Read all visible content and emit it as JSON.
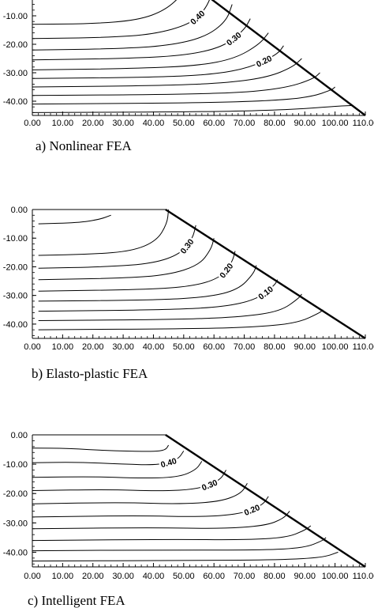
{
  "chart_data": [
    {
      "type": "line",
      "caption": "a) Nonlinear FEA",
      "xlim": [
        0,
        110
      ],
      "ylim": [
        -45,
        0
      ],
      "x_ticks": [
        "0.00",
        "10.00",
        "20.00",
        "30.00",
        "40.00",
        "50.00",
        "60.00",
        "70.00",
        "80.00",
        "90.00",
        "100.00",
        "110.00"
      ],
      "y_ticks": [
        "-10.00",
        "-20.00",
        "-30.00",
        "-40.00"
      ],
      "y_tick_values": [
        -10,
        -20,
        -30,
        -40
      ],
      "boundary": [
        [
          54,
          0
        ],
        [
          110,
          -45
        ]
      ],
      "series": [
        {
          "label": "",
          "points": [
            [
              0,
              -13
            ],
            [
              20,
              -12.8
            ],
            [
              35,
              -11.5
            ],
            [
              44,
              -8
            ],
            [
              50,
              -2
            ],
            [
              51,
              0
            ]
          ]
        },
        {
          "label": "0.40",
          "points": [
            [
              0,
              -18
            ],
            [
              25,
              -17.6
            ],
            [
              40,
              -16.5
            ],
            [
              52,
              -13
            ],
            [
              57,
              -8
            ],
            [
              59.5,
              -2
            ]
          ]
        },
        {
          "label": "",
          "points": [
            [
              0,
              -22
            ],
            [
              28,
              -21.6
            ],
            [
              45,
              -20.5
            ],
            [
              57,
              -17.5
            ],
            [
              64,
              -12
            ],
            [
              66,
              -6
            ]
          ]
        },
        {
          "label": "0.30",
          "points": [
            [
              0,
              -25.5
            ],
            [
              30,
              -25
            ],
            [
              50,
              -24
            ],
            [
              63,
              -21
            ],
            [
              70,
              -15
            ],
            [
              72,
              -11
            ]
          ]
        },
        {
          "label": "",
          "points": [
            [
              0,
              -29
            ],
            [
              35,
              -28.5
            ],
            [
              55,
              -27.5
            ],
            [
              67,
              -25
            ],
            [
              75,
              -20
            ],
            [
              78,
              -16
            ]
          ]
        },
        {
          "label": "0.20",
          "points": [
            [
              0,
              -32
            ],
            [
              40,
              -31.6
            ],
            [
              60,
              -30.6
            ],
            [
              72,
              -28.2
            ],
            [
              81,
              -23.5
            ],
            [
              83,
              -20.5
            ]
          ]
        },
        {
          "label": "",
          "points": [
            [
              0,
              -35
            ],
            [
              45,
              -34.5
            ],
            [
              65,
              -33.5
            ],
            [
              78,
              -31.5
            ],
            [
              86,
              -28
            ],
            [
              89,
              -25
            ]
          ]
        },
        {
          "label": "",
          "points": [
            [
              0,
              -38
            ],
            [
              50,
              -37.6
            ],
            [
              72,
              -36.8
            ],
            [
              85,
              -35
            ],
            [
              93,
              -32
            ],
            [
              95,
              -30
            ]
          ]
        },
        {
          "label": "",
          "points": [
            [
              0,
              -41
            ],
            [
              55,
              -40.6
            ],
            [
              80,
              -39.8
            ],
            [
              92,
              -38.5
            ],
            [
              99,
              -36
            ],
            [
              100,
              -35
            ]
          ]
        },
        {
          "label": "",
          "points": [
            [
              0,
              -44
            ],
            [
              60,
              -43.7
            ],
            [
              85,
              -43
            ],
            [
              100,
              -41.8
            ],
            [
              106,
              -41.5
            ]
          ]
        }
      ]
    },
    {
      "type": "line",
      "caption": "b) Elasto-plastic FEA",
      "xlim": [
        0,
        110
      ],
      "ylim": [
        -45,
        0
      ],
      "x_ticks": [
        "0.00",
        "10.00",
        "20.00",
        "30.00",
        "40.00",
        "50.00",
        "60.00",
        "70.00",
        "80.00",
        "90.00",
        "100.00",
        "110.00"
      ],
      "y_ticks": [
        "0.00",
        "-10.00",
        "-20.00",
        "-30.00",
        "-40.00"
      ],
      "y_tick_values": [
        0,
        -10,
        -20,
        -30,
        -40
      ],
      "boundary": [
        [
          44,
          0
        ],
        [
          110,
          -45
        ]
      ],
      "series": [
        {
          "label": "",
          "points": [
            [
              2,
              -5
            ],
            [
              15,
              -4.6
            ],
            [
              22,
              -3.5
            ],
            [
              26,
              -2
            ]
          ]
        },
        {
          "label": "",
          "points": [
            [
              2,
              -16
            ],
            [
              20,
              -15.6
            ],
            [
              33,
              -14.5
            ],
            [
              41,
              -11
            ],
            [
              44.5,
              -5
            ],
            [
              45,
              0
            ]
          ]
        },
        {
          "label": "0.30",
          "points": [
            [
              2,
              -20.5
            ],
            [
              25,
              -20
            ],
            [
              40,
              -18.8
            ],
            [
              49,
              -15.5
            ],
            [
              53,
              -10
            ],
            [
              54,
              -5.5
            ]
          ]
        },
        {
          "label": "",
          "points": [
            [
              2,
              -24.5
            ],
            [
              30,
              -24
            ],
            [
              45,
              -22.8
            ],
            [
              55,
              -19.5
            ],
            [
              59,
              -14
            ],
            [
              60,
              -10
            ]
          ]
        },
        {
          "label": "0.20",
          "points": [
            [
              2,
              -28.5
            ],
            [
              35,
              -28
            ],
            [
              52,
              -27
            ],
            [
              62,
              -24
            ],
            [
              66,
              -18.5
            ],
            [
              67,
              -14.5
            ]
          ]
        },
        {
          "label": "",
          "points": [
            [
              2,
              -32
            ],
            [
              40,
              -31.6
            ],
            [
              58,
              -30.6
            ],
            [
              68,
              -28
            ],
            [
              73,
              -22.5
            ],
            [
              74,
              -19.5
            ]
          ]
        },
        {
          "label": "0.10",
          "points": [
            [
              2,
              -35.5
            ],
            [
              45,
              -35
            ],
            [
              63,
              -34
            ],
            [
              74,
              -31.5
            ],
            [
              80,
              -26.5
            ],
            [
              81,
              -24.5
            ]
          ]
        },
        {
          "label": "",
          "points": [
            [
              2,
              -38.8
            ],
            [
              50,
              -38.4
            ],
            [
              70,
              -37.4
            ],
            [
              82,
              -35.5
            ],
            [
              88,
              -31
            ],
            [
              89,
              -29.5
            ]
          ]
        },
        {
          "label": "",
          "points": [
            [
              2,
              -42
            ],
            [
              55,
              -41.6
            ],
            [
              75,
              -41
            ],
            [
              88,
              -39.5
            ],
            [
              95,
              -36
            ],
            [
              96,
              -35
            ]
          ]
        }
      ]
    },
    {
      "type": "line",
      "caption": "c) Intelligent FEA",
      "xlim": [
        0,
        110
      ],
      "ylim": [
        -45,
        0
      ],
      "x_ticks": [
        "0.00",
        "10.00",
        "20.00",
        "30.00",
        "40.00",
        "50.00",
        "60.00",
        "70.00",
        "80.00",
        "90.00",
        "100.00",
        "110.00"
      ],
      "y_ticks": [
        "0.00",
        "-10.00",
        "-20.00",
        "-30.00",
        "-40.00"
      ],
      "y_tick_values": [
        0,
        -10,
        -20,
        -30,
        -40
      ],
      "boundary": [
        [
          44,
          0
        ],
        [
          110,
          -45
        ]
      ],
      "series": [
        {
          "label": "",
          "points": [
            [
              0,
              -4.5
            ],
            [
              12,
              -4.6
            ],
            [
              25,
              -5.4
            ],
            [
              40,
              -5.7
            ],
            [
              44,
              -5.2
            ],
            [
              45,
              -3.5
            ]
          ]
        },
        {
          "label": "0.40",
          "points": [
            [
              0,
              -9.5
            ],
            [
              15,
              -9.3
            ],
            [
              30,
              -10
            ],
            [
              42,
              -10.3
            ],
            [
              48,
              -8.5
            ],
            [
              50,
              -5.5
            ]
          ]
        },
        {
          "label": "",
          "points": [
            [
              0,
              -14.5
            ],
            [
              20,
              -14.2
            ],
            [
              35,
              -14.8
            ],
            [
              48,
              -14.5
            ],
            [
              54,
              -12
            ],
            [
              56,
              -9
            ]
          ]
        },
        {
          "label": "0.30",
          "points": [
            [
              0,
              -19
            ],
            [
              25,
              -18.6
            ],
            [
              42,
              -19.2
            ],
            [
              55,
              -18.5
            ],
            [
              62,
              -15.5
            ],
            [
              64,
              -12
            ]
          ]
        },
        {
          "label": "",
          "points": [
            [
              0,
              -23.5
            ],
            [
              30,
              -23
            ],
            [
              48,
              -23.6
            ],
            [
              62,
              -22.8
            ],
            [
              69,
              -20
            ],
            [
              71,
              -16.5
            ]
          ]
        },
        {
          "label": "0.20",
          "points": [
            [
              0,
              -28
            ],
            [
              35,
              -27.5
            ],
            [
              55,
              -28
            ],
            [
              69,
              -27
            ],
            [
              76,
              -24
            ],
            [
              78,
              -21
            ]
          ]
        },
        {
          "label": "",
          "points": [
            [
              0,
              -32
            ],
            [
              40,
              -31.6
            ],
            [
              62,
              -32
            ],
            [
              77,
              -31
            ],
            [
              83,
              -28.5
            ],
            [
              85,
              -26
            ]
          ]
        },
        {
          "label": "",
          "points": [
            [
              0,
              -36
            ],
            [
              45,
              -35.6
            ],
            [
              70,
              -35.8
            ],
            [
              84,
              -35
            ],
            [
              90,
              -32.5
            ],
            [
              92,
              -31
            ]
          ]
        },
        {
          "label": "",
          "points": [
            [
              0,
              -39.5
            ],
            [
              50,
              -39.2
            ],
            [
              76,
              -39.3
            ],
            [
              90,
              -38.5
            ],
            [
              96,
              -36
            ],
            [
              97,
              -35
            ]
          ]
        },
        {
          "label": "",
          "points": [
            [
              0,
              -43
            ],
            [
              55,
              -42.8
            ],
            [
              82,
              -42.6
            ],
            [
              96,
              -41.8
            ],
            [
              101,
              -40
            ]
          ]
        }
      ]
    }
  ]
}
